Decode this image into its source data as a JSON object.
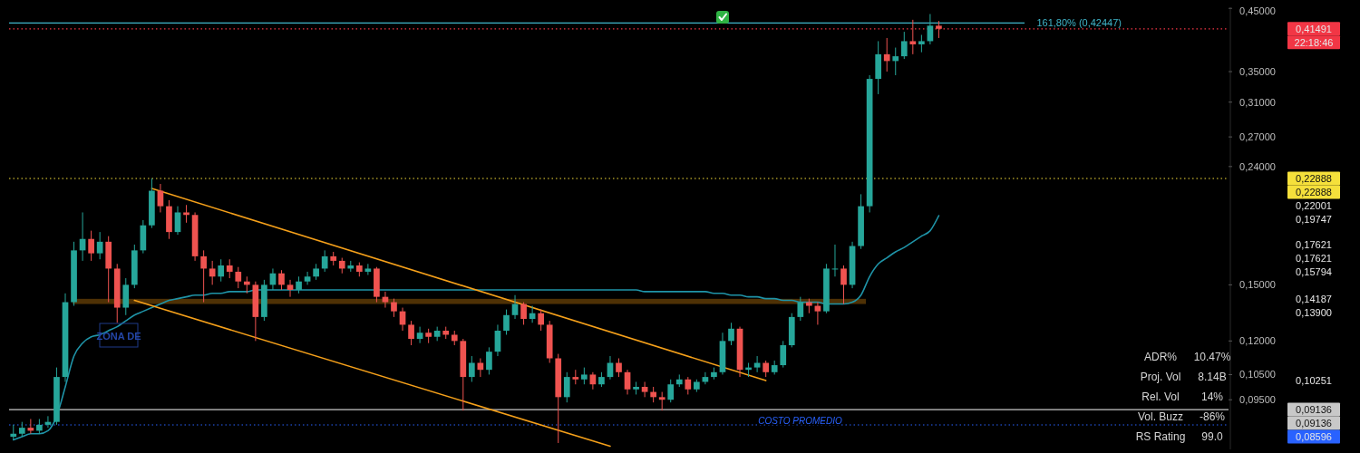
{
  "chart_data": {
    "type": "candlestick",
    "log": true,
    "categories": [
      null,
      null,
      null,
      null,
      null,
      null,
      null,
      null,
      null,
      null,
      null,
      null,
      null,
      null,
      null,
      null,
      null,
      null,
      null,
      null,
      null,
      null,
      null,
      null,
      null,
      null,
      null,
      null,
      null,
      null,
      null,
      null,
      null,
      null,
      null,
      null,
      null,
      null,
      null,
      null,
      null,
      null,
      null,
      null,
      null,
      null,
      null,
      null,
      null,
      null,
      null,
      null,
      null,
      null,
      null,
      null,
      null,
      null,
      null,
      null,
      null,
      null,
      null,
      null,
      null,
      null,
      null,
      null,
      null,
      null,
      null,
      null,
      null,
      null,
      null,
      null,
      null,
      null,
      null,
      null,
      null,
      null,
      null,
      null,
      null,
      null,
      null,
      null,
      null,
      null,
      null,
      null,
      null,
      null,
      null,
      null,
      null,
      null,
      null,
      null,
      null,
      null,
      null,
      null,
      null,
      null,
      null,
      null,
      null,
      null,
      null,
      null,
      null,
      null,
      null,
      null,
      null,
      null,
      null,
      null,
      null,
      null,
      null,
      null,
      null,
      null,
      null,
      null,
      null,
      null,
      null,
      null,
      null,
      null,
      null,
      null,
      null,
      null,
      null,
      null,
      null
    ],
    "ohlc": [
      [
        0.082,
        0.086,
        0.081,
        0.083
      ],
      [
        0.083,
        0.087,
        0.082,
        0.085
      ],
      [
        0.085,
        0.088,
        0.083,
        0.084
      ],
      [
        0.084,
        0.088,
        0.083,
        0.086
      ],
      [
        0.086,
        0.089,
        0.085,
        0.087
      ],
      [
        0.087,
        0.108,
        0.086,
        0.104
      ],
      [
        0.104,
        0.145,
        0.102,
        0.14
      ],
      [
        0.14,
        0.178,
        0.138,
        0.172
      ],
      [
        0.172,
        0.2,
        0.165,
        0.18
      ],
      [
        0.18,
        0.186,
        0.165,
        0.17
      ],
      [
        0.17,
        0.185,
        0.166,
        0.178
      ],
      [
        0.178,
        0.182,
        0.14,
        0.16
      ],
      [
        0.16,
        0.163,
        0.129,
        0.137
      ],
      [
        0.137,
        0.154,
        0.133,
        0.15
      ],
      [
        0.15,
        0.176,
        0.148,
        0.172
      ],
      [
        0.172,
        0.194,
        0.17,
        0.19
      ],
      [
        0.19,
        0.229,
        0.188,
        0.218
      ],
      [
        0.218,
        0.224,
        0.2,
        0.205
      ],
      [
        0.205,
        0.21,
        0.18,
        0.185
      ],
      [
        0.185,
        0.205,
        0.183,
        0.2
      ],
      [
        0.2,
        0.206,
        0.192,
        0.198
      ],
      [
        0.198,
        0.2,
        0.165,
        0.168
      ],
      [
        0.168,
        0.172,
        0.14,
        0.16
      ],
      [
        0.16,
        0.165,
        0.15,
        0.155
      ],
      [
        0.155,
        0.166,
        0.152,
        0.162
      ],
      [
        0.162,
        0.166,
        0.154,
        0.158
      ],
      [
        0.158,
        0.161,
        0.148,
        0.152
      ],
      [
        0.152,
        0.155,
        0.145,
        0.15
      ],
      [
        0.15,
        0.152,
        0.12,
        0.132
      ],
      [
        0.132,
        0.153,
        0.13,
        0.15
      ],
      [
        0.15,
        0.16,
        0.147,
        0.157
      ],
      [
        0.157,
        0.159,
        0.147,
        0.15
      ],
      [
        0.15,
        0.153,
        0.143,
        0.147
      ],
      [
        0.147,
        0.155,
        0.145,
        0.152
      ],
      [
        0.152,
        0.158,
        0.15,
        0.155
      ],
      [
        0.155,
        0.163,
        0.153,
        0.16
      ],
      [
        0.16,
        0.172,
        0.158,
        0.168
      ],
      [
        0.168,
        0.171,
        0.162,
        0.165
      ],
      [
        0.165,
        0.167,
        0.157,
        0.16
      ],
      [
        0.16,
        0.165,
        0.158,
        0.162
      ],
      [
        0.162,
        0.164,
        0.155,
        0.158
      ],
      [
        0.158,
        0.163,
        0.156,
        0.16
      ],
      [
        0.16,
        0.161,
        0.14,
        0.143
      ],
      [
        0.143,
        0.146,
        0.137,
        0.14
      ],
      [
        0.14,
        0.142,
        0.132,
        0.135
      ],
      [
        0.135,
        0.137,
        0.125,
        0.128
      ],
      [
        0.128,
        0.13,
        0.118,
        0.121
      ],
      [
        0.121,
        0.127,
        0.119,
        0.124
      ],
      [
        0.124,
        0.126,
        0.119,
        0.122
      ],
      [
        0.122,
        0.127,
        0.12,
        0.125
      ],
      [
        0.125,
        0.127,
        0.121,
        0.123
      ],
      [
        0.123,
        0.125,
        0.118,
        0.12
      ],
      [
        0.12,
        0.121,
        0.091,
        0.104
      ],
      [
        0.104,
        0.113,
        0.102,
        0.11
      ],
      [
        0.11,
        0.112,
        0.104,
        0.107
      ],
      [
        0.107,
        0.117,
        0.105,
        0.115
      ],
      [
        0.115,
        0.128,
        0.113,
        0.125
      ],
      [
        0.125,
        0.136,
        0.123,
        0.133
      ],
      [
        0.133,
        0.144,
        0.131,
        0.139
      ],
      [
        0.139,
        0.14,
        0.128,
        0.131
      ],
      [
        0.131,
        0.138,
        0.129,
        0.134
      ],
      [
        0.134,
        0.136,
        0.125,
        0.128
      ],
      [
        0.128,
        0.13,
        0.11,
        0.112
      ],
      [
        0.112,
        0.114,
        0.08,
        0.096
      ],
      [
        0.096,
        0.106,
        0.094,
        0.104
      ],
      [
        0.104,
        0.107,
        0.101,
        0.103
      ],
      [
        0.103,
        0.108,
        0.101,
        0.105
      ],
      [
        0.105,
        0.106,
        0.099,
        0.101
      ],
      [
        0.101,
        0.106,
        0.1,
        0.104
      ],
      [
        0.104,
        0.113,
        0.103,
        0.11
      ],
      [
        0.11,
        0.112,
        0.104,
        0.106
      ],
      [
        0.106,
        0.107,
        0.097,
        0.099
      ],
      [
        0.099,
        0.102,
        0.097,
        0.1
      ],
      [
        0.1,
        0.102,
        0.096,
        0.098
      ],
      [
        0.098,
        0.1,
        0.094,
        0.096
      ],
      [
        0.096,
        0.098,
        0.091,
        0.095
      ],
      [
        0.095,
        0.103,
        0.094,
        0.101
      ],
      [
        0.101,
        0.105,
        0.1,
        0.103
      ],
      [
        0.103,
        0.104,
        0.097,
        0.099
      ],
      [
        0.099,
        0.103,
        0.098,
        0.102
      ],
      [
        0.102,
        0.106,
        0.101,
        0.104
      ],
      [
        0.104,
        0.108,
        0.103,
        0.106
      ],
      [
        0.106,
        0.124,
        0.105,
        0.12
      ],
      [
        0.12,
        0.129,
        0.118,
        0.126
      ],
      [
        0.126,
        0.127,
        0.104,
        0.107
      ],
      [
        0.107,
        0.11,
        0.104,
        0.108
      ],
      [
        0.108,
        0.113,
        0.106,
        0.11
      ],
      [
        0.11,
        0.111,
        0.104,
        0.106
      ],
      [
        0.106,
        0.111,
        0.105,
        0.109
      ],
      [
        0.109,
        0.12,
        0.108,
        0.118
      ],
      [
        0.118,
        0.134,
        0.117,
        0.132
      ],
      [
        0.132,
        0.143,
        0.13,
        0.14
      ],
      [
        0.14,
        0.142,
        0.134,
        0.138
      ],
      [
        0.138,
        0.14,
        0.128,
        0.135
      ],
      [
        0.135,
        0.163,
        0.134,
        0.16
      ],
      [
        0.16,
        0.176,
        0.155,
        0.16
      ],
      [
        0.16,
        0.162,
        0.139,
        0.15
      ],
      [
        0.15,
        0.178,
        0.148,
        0.175
      ],
      [
        0.175,
        0.215,
        0.173,
        0.205
      ],
      [
        0.205,
        0.345,
        0.2,
        0.34
      ],
      [
        0.34,
        0.395,
        0.32,
        0.375
      ],
      [
        0.375,
        0.4,
        0.35,
        0.365
      ],
      [
        0.365,
        0.385,
        0.345,
        0.372
      ],
      [
        0.372,
        0.41,
        0.368,
        0.395
      ],
      [
        0.395,
        0.43,
        0.375,
        0.39
      ],
      [
        0.39,
        0.405,
        0.378,
        0.395
      ],
      [
        0.395,
        0.44,
        0.39,
        0.42
      ],
      [
        0.42,
        0.428,
        0.4,
        0.41491
      ],
      null,
      null,
      null,
      null,
      null,
      null,
      null,
      null,
      null,
      null,
      null,
      null,
      null,
      null,
      null,
      null,
      null,
      null,
      null,
      null,
      null,
      null,
      null,
      null,
      null,
      null,
      null,
      null,
      null,
      null,
      null,
      null,
      null
    ],
    "series": [
      {
        "type": "line",
        "color": "#1f94a8",
        "values": [
          0.081,
          0.082,
          0.083,
          0.083,
          0.084,
          0.089,
          0.1,
          0.113,
          0.119,
          0.122,
          0.123,
          0.125,
          0.127,
          0.13,
          0.133,
          0.135,
          0.137,
          0.139,
          0.141,
          0.142,
          0.143,
          0.144,
          0.144,
          0.145,
          0.145,
          0.146,
          0.146,
          0.146,
          0.147,
          0.147,
          0.147,
          0.147,
          0.147,
          0.147,
          0.147,
          0.147,
          0.147,
          0.147,
          0.147,
          0.147,
          0.147,
          0.147,
          0.147,
          0.147,
          0.147,
          0.147,
          0.147,
          0.147,
          0.147,
          0.147,
          0.147,
          0.147,
          0.147,
          0.147,
          0.147,
          0.147,
          0.147,
          0.147,
          0.147,
          0.147,
          0.147,
          0.147,
          0.147,
          0.147,
          0.147,
          0.147,
          0.147,
          0.147,
          0.147,
          0.147,
          0.147,
          0.147,
          0.147,
          0.146,
          0.146,
          0.146,
          0.146,
          0.146,
          0.146,
          0.146,
          0.146,
          0.145,
          0.145,
          0.144,
          0.144,
          0.143,
          0.143,
          0.142,
          0.142,
          0.141,
          0.141,
          0.14,
          0.14,
          0.14,
          0.139,
          0.139,
          0.139,
          0.14,
          0.144,
          0.155,
          0.163,
          0.167,
          0.171,
          0.174,
          0.178,
          0.182,
          0.186,
          0.19747,
          null,
          null,
          null,
          null,
          null,
          null,
          null,
          null,
          null,
          null,
          null,
          null,
          null,
          null,
          null,
          null,
          null,
          null,
          null,
          null,
          null,
          null,
          null,
          null,
          null,
          null,
          null,
          null,
          null,
          null,
          null,
          null,
          null
        ]
      },
      {
        "type": "line",
        "color": "#f5a01a",
        "values": [
          null,
          null,
          null,
          null,
          null,
          null,
          null,
          null,
          null,
          null,
          null,
          null,
          null,
          null,
          null,
          null,
          0.22,
          null,
          null,
          null,
          null,
          null,
          null,
          null,
          null,
          null,
          null,
          null,
          null,
          null,
          null,
          null,
          null,
          null,
          null,
          null,
          null,
          null,
          null,
          null,
          null,
          null,
          null,
          null,
          null,
          null,
          null,
          null,
          null,
          null,
          null,
          null,
          null,
          null,
          null,
          null,
          null,
          null,
          null,
          null,
          null,
          null,
          null,
          null,
          null,
          null,
          null,
          null,
          null,
          null,
          null,
          null,
          null,
          null,
          null,
          null,
          null,
          null,
          null,
          null,
          null,
          null,
          null,
          null,
          null,
          null,
          null,
          0.10251,
          null,
          null,
          null,
          null,
          null,
          null,
          null,
          null,
          null,
          null,
          null,
          null,
          null,
          null,
          null,
          null,
          null,
          null,
          null,
          null,
          null,
          null,
          null,
          null,
          null,
          null,
          null,
          null,
          null,
          null,
          null,
          null,
          null,
          null,
          null,
          null,
          null,
          null,
          null,
          null,
          null,
          null,
          null,
          null,
          null,
          null,
          null,
          null,
          null,
          null,
          null,
          null,
          null
        ]
      },
      {
        "type": "line",
        "color": "#f5a01a",
        "values": [
          null,
          null,
          null,
          null,
          null,
          null,
          null,
          null,
          null,
          null,
          null,
          null,
          null,
          null,
          0.141,
          null,
          null,
          null,
          null,
          null,
          null,
          null,
          null,
          null,
          null,
          null,
          null,
          null,
          null,
          null,
          null,
          null,
          null,
          null,
          null,
          null,
          null,
          null,
          null,
          null,
          null,
          null,
          null,
          null,
          null,
          null,
          null,
          null,
          null,
          null,
          null,
          null,
          null,
          null,
          null,
          null,
          null,
          null,
          null,
          null,
          null,
          null,
          null,
          null,
          null,
          null,
          null,
          null,
          null,
          0.079,
          null,
          null,
          null,
          null,
          null,
          null,
          null,
          null,
          null,
          null,
          null,
          null,
          null,
          null,
          null,
          null,
          null,
          null,
          null,
          null,
          null,
          null,
          null,
          null,
          null,
          null,
          null,
          null,
          null,
          null,
          null,
          null,
          null,
          null,
          null,
          null,
          null,
          null,
          null,
          null,
          null,
          null,
          null,
          null,
          null,
          null,
          null,
          null,
          null,
          null,
          null,
          null,
          null,
          null,
          null,
          null,
          null,
          null,
          null,
          null,
          null,
          null,
          null,
          null,
          null,
          null,
          null,
          null,
          null,
          null,
          null
        ]
      }
    ],
    "ylim": [
      0.078,
      0.452
    ],
    "yticks": [
      {
        "value": 0.45,
        "label": "0,45000"
      },
      {
        "value": 0.35,
        "label": "0,35000"
      },
      {
        "value": 0.31,
        "label": "0,31000"
      },
      {
        "value": 0.27,
        "label": "0,27000"
      },
      {
        "value": 0.24,
        "label": "0,24000"
      },
      {
        "value": 0.15,
        "label": "0,15000"
      },
      {
        "value": 0.12,
        "label": "0,12000"
      },
      {
        "value": 0.105,
        "label": "0,10500"
      },
      {
        "value": 0.095,
        "label": "0,09500"
      }
    ],
    "ref_lines": [
      {
        "axis": "y",
        "value": 0.42447,
        "label": "161,80% (0,42447)",
        "color": "#3fb5c9",
        "line_style": "solid"
      },
      {
        "axis": "y",
        "value": 0.41491,
        "color": "#f23645",
        "line_style": "dotted"
      },
      {
        "axis": "y",
        "value": 0.22888,
        "color": "#f5e03b",
        "line_style": "dotted"
      },
      {
        "axis": "y",
        "value": 0.09136,
        "color": "#c8c8c8",
        "line_style": "solid"
      },
      {
        "axis": "y",
        "value": 0.08596,
        "label": "COSTO PROMEDIO",
        "color": "#2962ff",
        "line_style": "dotted"
      }
    ],
    "bands": [
      {
        "axis": "y",
        "from": 0.139,
        "to": 0.14187,
        "color": "#5c3a06"
      }
    ],
    "annotations": [
      "ZONA DE",
      "ADR%",
      "10.47%",
      "Proj. Vol",
      "8.14B",
      "Rel. Vol",
      "14%",
      "Vol. Buzz",
      "-86%",
      "RS Rating",
      "99.0",
      "0,41491",
      "22:18:46",
      "0,22888",
      "0,22888",
      "0,22001",
      "0,19747",
      "0,17621",
      "0,17621",
      "0,15794",
      "0,14187",
      "0,13900",
      "0,10251",
      "0,09136",
      "0,09136",
      "0,08596"
    ]
  }
}
